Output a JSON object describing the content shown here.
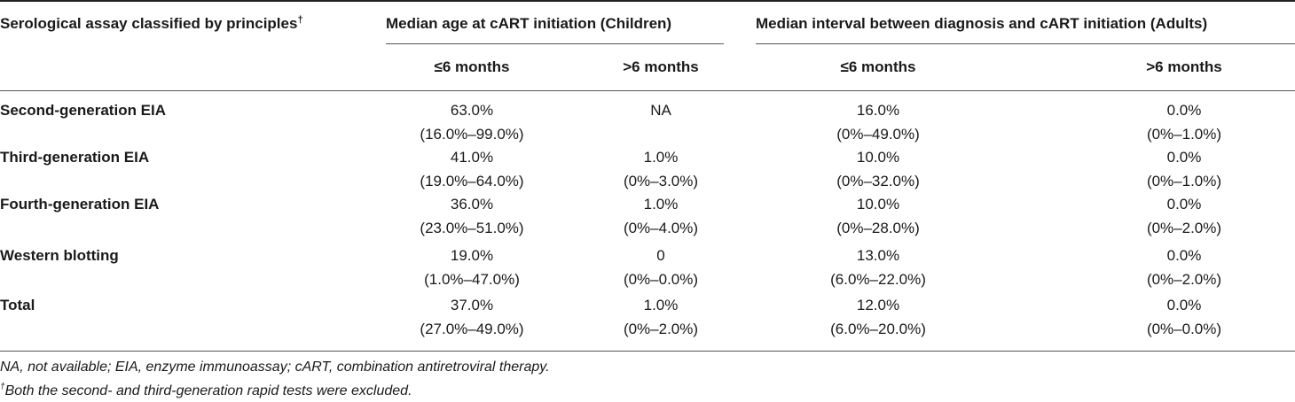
{
  "table": {
    "header": {
      "col0": "Serological assay classified by principles",
      "col0_mark": "†",
      "group_children": "Median age at cART initiation (Children)",
      "group_adults": "Median interval between diagnosis and cART initiation (Adults)",
      "sub": [
        "≤6 months",
        ">6 months",
        "≤6 months",
        ">6 months"
      ]
    },
    "rows": [
      {
        "label": "Second-generation EIA",
        "cells": [
          {
            "main": "63.0%",
            "ci": "(16.0%–99.0%)"
          },
          {
            "main": "NA",
            "ci": ""
          },
          {
            "main": "16.0%",
            "ci": "(0%–49.0%)"
          },
          {
            "main": "0.0%",
            "ci": "(0%–1.0%)"
          }
        ]
      },
      {
        "label": "Third-generation EIA",
        "cells": [
          {
            "main": "41.0%",
            "ci": "(19.0%–64.0%)"
          },
          {
            "main": "1.0%",
            "ci": "(0%–3.0%)"
          },
          {
            "main": "10.0%",
            "ci": "(0%–32.0%)"
          },
          {
            "main": "0.0%",
            "ci": "(0%–1.0%)"
          }
        ]
      },
      {
        "label": "Fourth-generation EIA",
        "cells": [
          {
            "main": "36.0%",
            "ci": "(23.0%–51.0%)"
          },
          {
            "main": "1.0%",
            "ci": "(0%–4.0%)"
          },
          {
            "main": "10.0%",
            "ci": "(0%–28.0%)"
          },
          {
            "main": "0.0%",
            "ci": "(0%–2.0%)"
          }
        ]
      },
      {
        "label": "Western blotting",
        "cells": [
          {
            "main": "19.0%",
            "ci": "(1.0%–47.0%)"
          },
          {
            "main": "0",
            "ci": "(0%–0.0%)"
          },
          {
            "main": "13.0%",
            "ci": "(6.0%–22.0%)"
          },
          {
            "main": "0.0%",
            "ci": "(0%–2.0%)"
          }
        ]
      },
      {
        "label": "Total",
        "cells": [
          {
            "main": "37.0%",
            "ci": "(27.0%–49.0%)"
          },
          {
            "main": "1.0%",
            "ci": "(0%–2.0%)"
          },
          {
            "main": "12.0%",
            "ci": "(6.0%–20.0%)"
          },
          {
            "main": "0.0%",
            "ci": "(0%–0.0%)"
          }
        ]
      }
    ]
  },
  "footnotes": {
    "abbrev": "NA, not available; EIA, enzyme immunoassay; cART, combination antiretroviral therapy.",
    "dagger_mark": "†",
    "dagger_text": "Both the second- and third-generation rapid tests were excluded."
  }
}
